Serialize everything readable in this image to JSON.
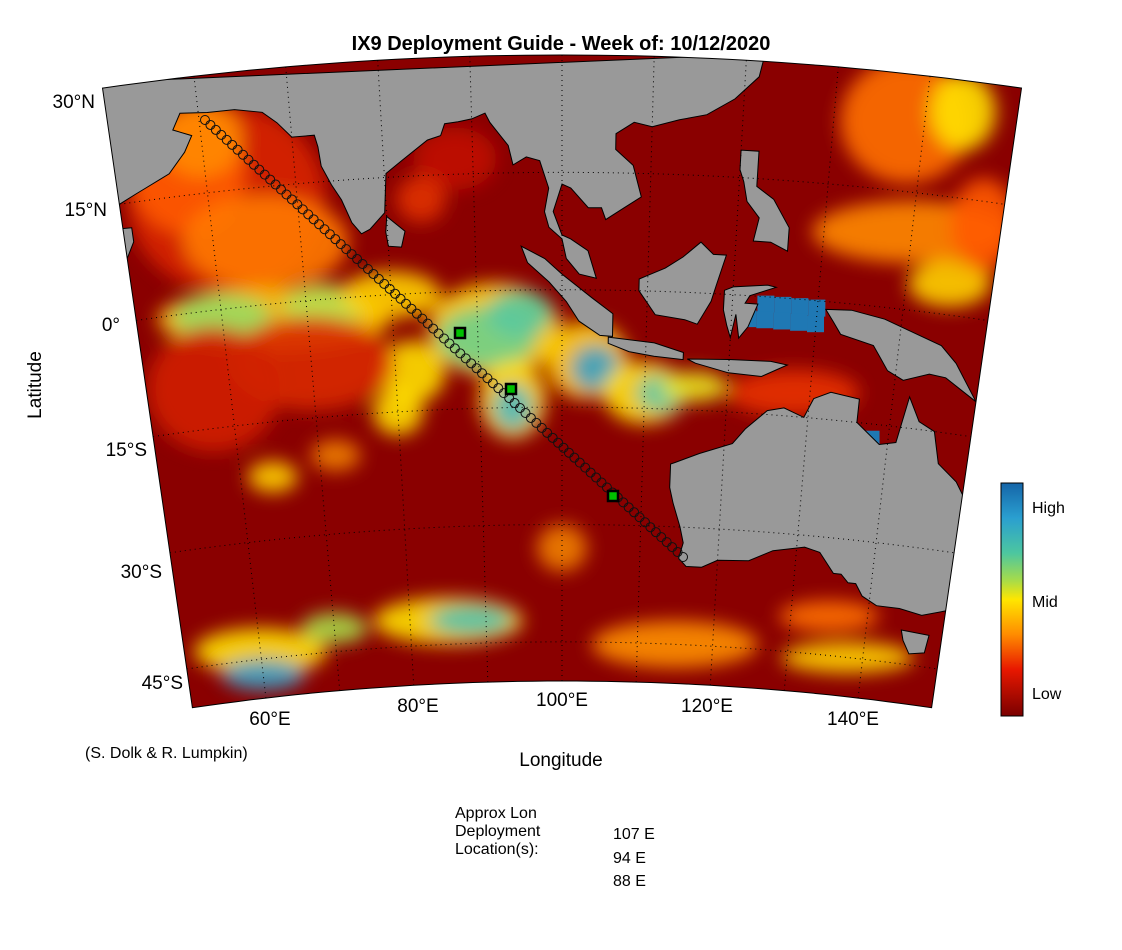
{
  "title": "IX9 Deployment Guide - Week of: 10/12/2020",
  "axes": {
    "x_label": "Longitude",
    "y_label": "Latitude",
    "lon_ticks": [
      "60°E",
      "80°E",
      "100°E",
      "120°E",
      "140°E"
    ],
    "lat_ticks": [
      "30°N",
      "15°N",
      "0°",
      "15°S",
      "30°S",
      "45°S"
    ]
  },
  "colorbar": {
    "labels": [
      "High",
      "Mid",
      "Low"
    ]
  },
  "credit": "(S. Dolk & R. Lumpkin)",
  "deployment": {
    "heading": [
      "Approx Lon",
      "Deployment",
      "Location(s):"
    ],
    "locations": [
      "107 E",
      "94 E",
      "88 E"
    ]
  }
}
